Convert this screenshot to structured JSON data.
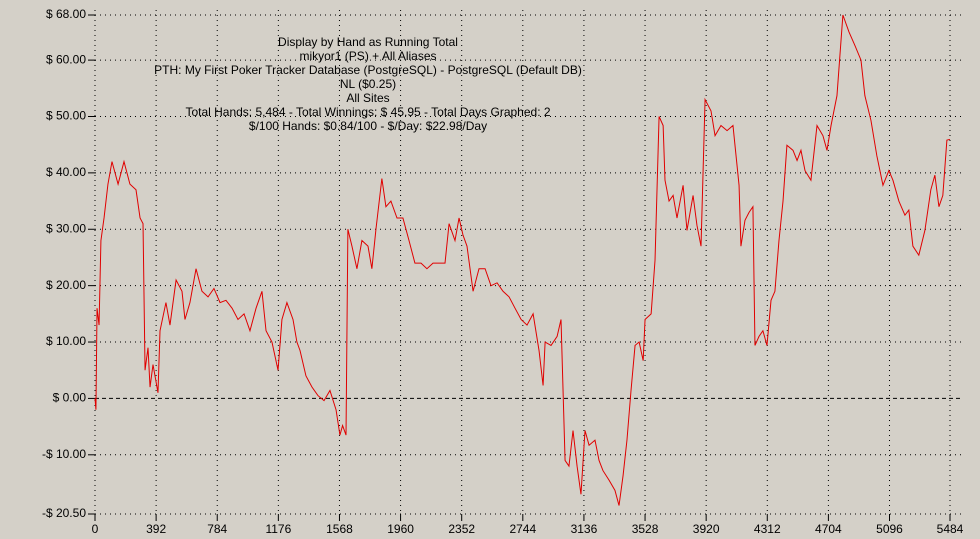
{
  "chart_data": {
    "type": "line",
    "annotations": [
      "Display by Hand as Running Total",
      "mikyor1 (PS) + All Aliases",
      "PTH: My First Poker Tracker Database (PostgreSQL) - PostgreSQL (Default DB)",
      "NL ($0.25)",
      "All Sites",
      "Total Hands: 5,484 - Total Winnings: $ 45.95 - Total Days Graphed: 2",
      "$/100 Hands: $0.84/100 - $/Day: $22.98/Day"
    ],
    "x": [
      0,
      6,
      13,
      26,
      38,
      58,
      83,
      109,
      148,
      186,
      224,
      263,
      289,
      308,
      321,
      340,
      353,
      372,
      404,
      417,
      455,
      481,
      520,
      558,
      577,
      609,
      648,
      686,
      725,
      763,
      802,
      840,
      879,
      917,
      956,
      994,
      1033,
      1071,
      1097,
      1135,
      1174,
      1199,
      1231,
      1270,
      1295,
      1315,
      1353,
      1392,
      1430,
      1469,
      1507,
      1546,
      1571,
      1588,
      1610,
      1622,
      1648,
      1680,
      1712,
      1751,
      1776,
      1802,
      1840,
      1866,
      1898,
      1937,
      1975,
      2014,
      2052,
      2091,
      2129,
      2168,
      2206,
      2245,
      2271,
      2309,
      2335,
      2360,
      2386,
      2425,
      2463,
      2502,
      2540,
      2579,
      2617,
      2656,
      2694,
      2733,
      2771,
      2810,
      2848,
      2874,
      2887,
      2925,
      2964,
      2989,
      3015,
      3040,
      3066,
      3092,
      3117,
      3143,
      3169,
      3207,
      3233,
      3258,
      3297,
      3335,
      3361,
      3387,
      3412,
      3438,
      3464,
      3490,
      3516,
      3528,
      3567,
      3592,
      3618,
      3644,
      3656,
      3682,
      3708,
      3733,
      3772,
      3797,
      3836,
      3861,
      3887,
      3913,
      3951,
      3977,
      4015,
      4054,
      4092,
      4131,
      4143,
      4169,
      4195,
      4220,
      4233,
      4259,
      4284,
      4310,
      4336,
      4361,
      4387,
      4413,
      4438,
      4477,
      4503,
      4528,
      4554,
      4592,
      4631,
      4669,
      4695,
      4721,
      4759,
      4797,
      4836,
      4874,
      4913,
      4938,
      4977,
      5015,
      5054,
      5092,
      5118,
      5156,
      5195,
      5220,
      5246,
      5284,
      5323,
      5361,
      5387,
      5413,
      5438,
      5464,
      5484
    ],
    "series": [
      {
        "color": "#e00000",
        "values": [
          0,
          -2,
          16,
          13,
          28,
          32,
          38,
          42,
          38,
          42,
          38,
          37,
          32,
          31,
          5,
          9,
          2,
          6,
          1,
          12,
          17,
          13,
          21,
          19,
          14,
          17,
          23,
          19,
          18,
          19.5,
          17,
          17.4,
          16,
          14,
          15,
          12,
          16,
          19,
          12,
          10,
          5,
          14,
          17,
          14,
          10,
          8.5,
          4,
          2,
          0.5,
          -0.4,
          1.4,
          -2,
          -6.5,
          -4.8,
          -6.5,
          30,
          27,
          23,
          28,
          27,
          23,
          30,
          39,
          34,
          35,
          32,
          32,
          28,
          24,
          24,
          23,
          24,
          24,
          24,
          31,
          28,
          32,
          29,
          27,
          19,
          23,
          23,
          20,
          20.5,
          19,
          18,
          16,
          14,
          13,
          15,
          8.5,
          2.3,
          10,
          9.4,
          11,
          14,
          -11,
          -12,
          -5.7,
          -12,
          -17,
          -5.7,
          -8.3,
          -7.4,
          -11,
          -12.8,
          -14.5,
          -16.3,
          -19,
          -13.7,
          -7.4,
          1.4,
          9.4,
          10,
          6.7,
          14,
          15,
          24.5,
          50,
          48.4,
          38.7,
          35,
          36,
          32,
          37.8,
          29.8,
          36,
          30.7,
          27,
          53,
          51,
          46.6,
          48.4,
          47.5,
          48.4,
          37.8,
          27,
          31.6,
          33,
          34,
          9.4,
          11,
          12,
          9.4,
          17.4,
          19,
          28,
          35,
          44.9,
          44,
          42.2,
          44,
          40.4,
          38.7,
          48.4,
          46.6,
          44,
          48.4,
          53.7,
          68,
          65,
          62.6,
          60,
          53.7,
          49.3,
          43,
          37.8,
          40.4,
          38.7,
          35,
          32.5,
          33.4,
          27,
          25.4,
          29.8,
          37,
          39.6,
          34,
          36,
          45.8,
          45.95
        ]
      }
    ],
    "xlim": [
      0,
      5484
    ],
    "xticks": [
      0,
      392,
      784,
      1176,
      1568,
      1960,
      2352,
      2744,
      3136,
      3528,
      3920,
      4312,
      4704,
      5096,
      5484
    ],
    "ylim": [
      -20.5,
      68
    ],
    "yticks": [
      {
        "value": 68,
        "label": "$ 68.00"
      },
      {
        "value": 60,
        "label": "$ 60.00"
      },
      {
        "value": 50,
        "label": "$ 50.00"
      },
      {
        "value": 40,
        "label": "$ 40.00"
      },
      {
        "value": 30,
        "label": "$ 30.00"
      },
      {
        "value": 20,
        "label": "$ 20.00"
      },
      {
        "value": 10,
        "label": "$ 10.00"
      },
      {
        "value": 0,
        "label": "$ 0.00"
      },
      {
        "value": -10,
        "label": "-$ 10.00"
      },
      {
        "value": -20.5,
        "label": "-$ 20.50"
      }
    ],
    "grid": true
  }
}
